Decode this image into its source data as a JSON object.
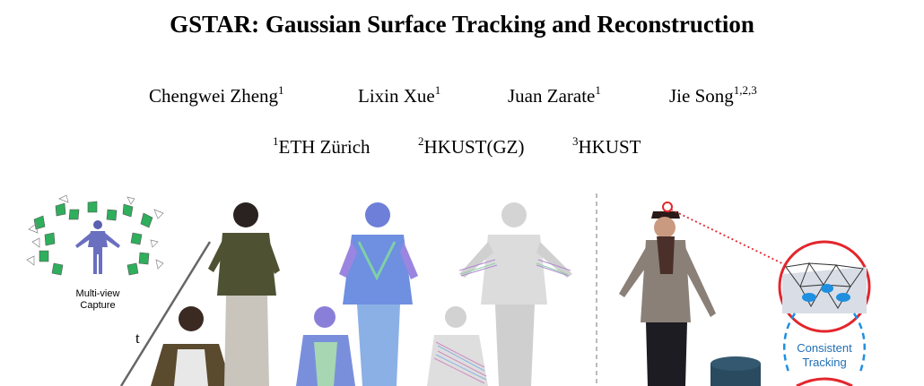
{
  "paper": {
    "title": "GSTAR: Gaussian Surface Tracking and Reconstruction",
    "authors": [
      {
        "name": "Chengwei Zheng",
        "sup": "1"
      },
      {
        "name": "Lixin Xue",
        "sup": "1"
      },
      {
        "name": "Juan Zarate",
        "sup": "1"
      },
      {
        "name": "Jie Song",
        "sup": "1,2,3"
      }
    ],
    "affiliations": [
      {
        "sup": "1",
        "name": "ETH Zürich"
      },
      {
        "sup": "2",
        "name": "HKUST(GZ)"
      },
      {
        "sup": "3",
        "name": "HKUST"
      }
    ]
  },
  "figure": {
    "capture_label_line1": "Multi-view",
    "capture_label_line2": "Capture",
    "time_label": "t",
    "tracking_label_line1": "Consistent",
    "tracking_label_line2": "Tracking",
    "colors": {
      "camera_green": "#2fae5c",
      "highlight_red": "#e3262c",
      "tracking_blue": "#1f8fe0",
      "divider_gray": "#bbbbbb"
    }
  }
}
